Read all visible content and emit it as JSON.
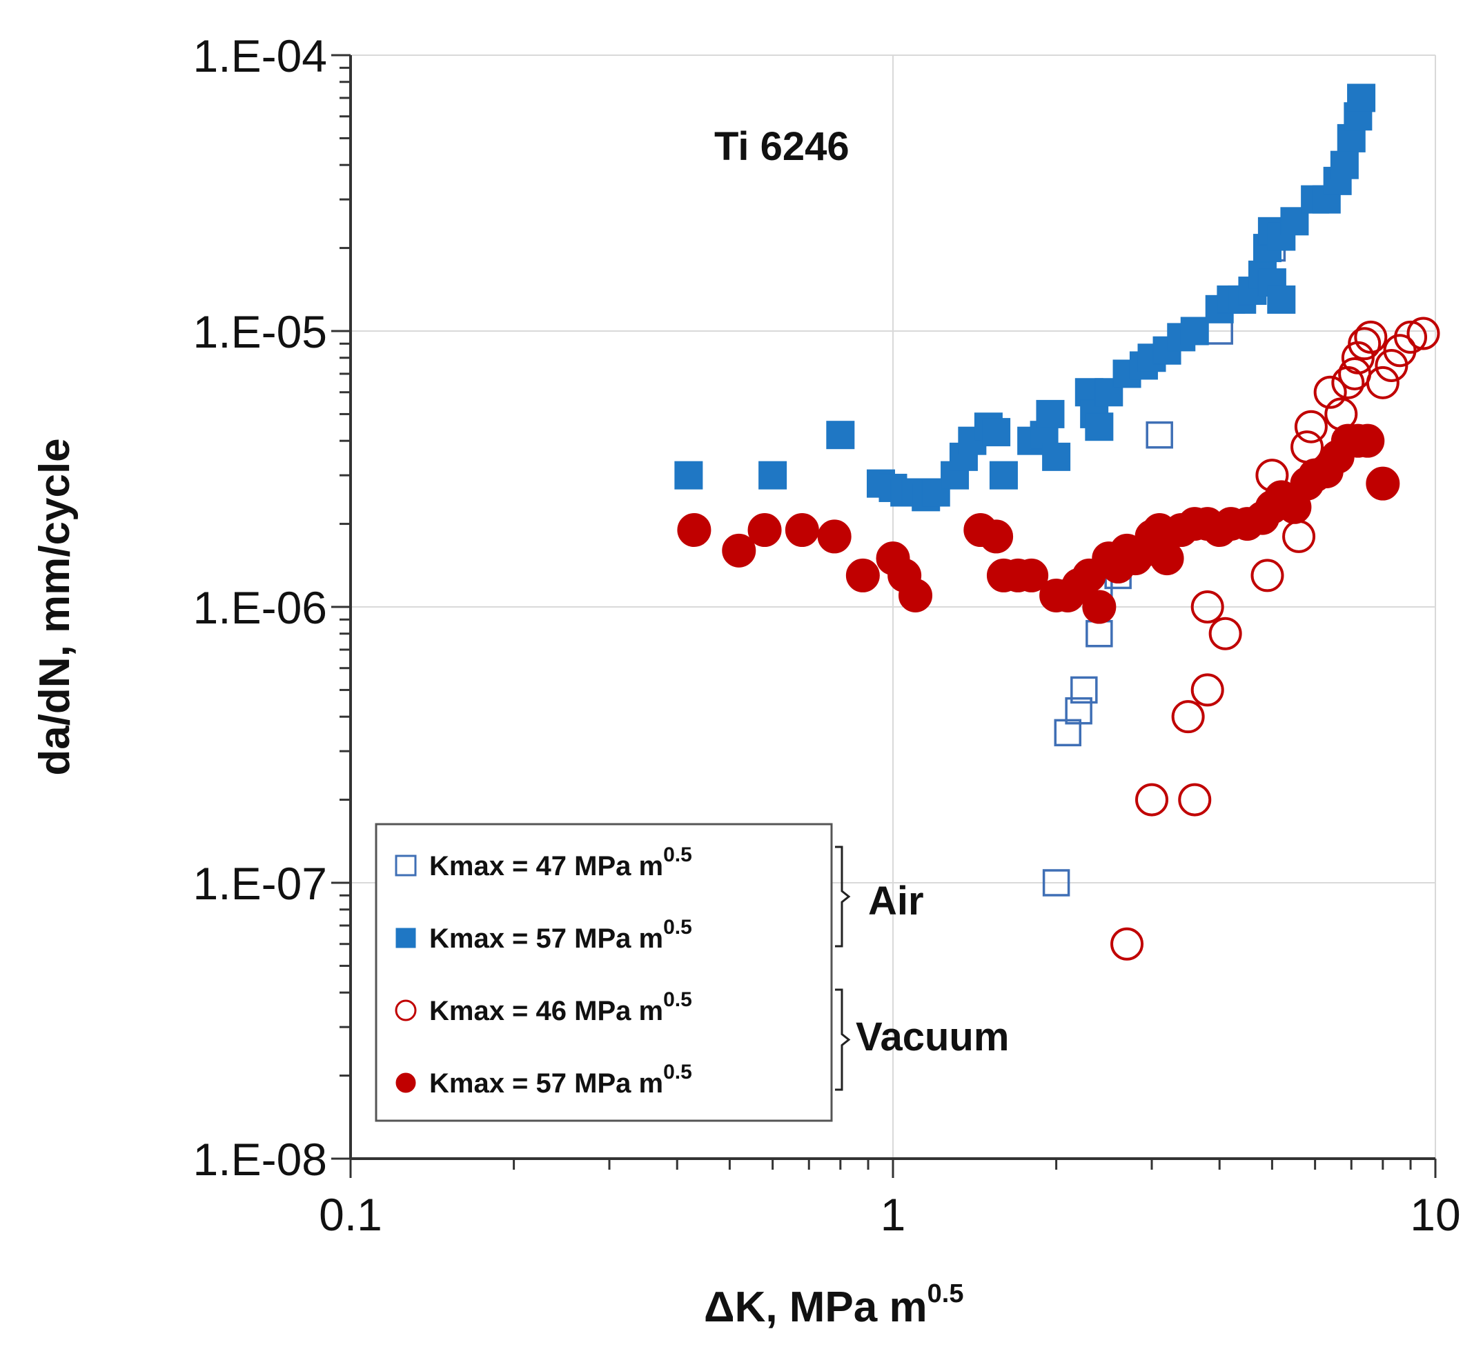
{
  "chart_data": {
    "type": "scatter",
    "title": "",
    "annotation": "Ti 6246",
    "xlabel": {
      "main": "ΔK, MPa m",
      "sup": "0.5"
    },
    "ylabel": "da/dN, mm/cycle",
    "xscale": "log",
    "yscale": "log",
    "xlim": [
      0.1,
      10
    ],
    "ylim": [
      1e-08,
      0.0001
    ],
    "x_ticks": [
      {
        "value": 0.1,
        "label": "0.1"
      },
      {
        "value": 1,
        "label": "1"
      },
      {
        "value": 10,
        "label": "10"
      }
    ],
    "y_ticks": [
      {
        "value": 1e-08,
        "label": "1.E-08"
      },
      {
        "value": 1e-07,
        "label": "1.E-07"
      },
      {
        "value": 1e-06,
        "label": "1.E-06"
      },
      {
        "value": 1e-05,
        "label": "1.E-05"
      },
      {
        "value": 0.0001,
        "label": "1.E-04"
      }
    ],
    "grid": true,
    "legend_position": "bottom-left",
    "groups": [
      {
        "label": "Air",
        "series": [
          0,
          1
        ]
      },
      {
        "label": "Vacuum",
        "series": [
          2,
          3
        ]
      }
    ],
    "series": [
      {
        "name": "Kmax = 47 MPa m",
        "sup": "0.5",
        "marker": "square",
        "filled": false,
        "color": "#3f6fb5",
        "points": [
          [
            2.0,
            1e-07
          ],
          [
            2.1,
            3.5e-07
          ],
          [
            2.2,
            4.2e-07
          ],
          [
            2.25,
            5e-07
          ],
          [
            2.4,
            8e-07
          ],
          [
            2.4,
            1.2e-06
          ],
          [
            2.6,
            1.3e-06
          ],
          [
            3.1,
            4.2e-06
          ],
          [
            4.0,
            1e-05
          ],
          [
            5.0,
            2e-05
          ]
        ]
      },
      {
        "name": "Kmax = 57 MPa m",
        "sup": "0.5",
        "marker": "square",
        "filled": true,
        "color": "#1f77c4",
        "points": [
          [
            0.42,
            3e-06
          ],
          [
            0.6,
            3e-06
          ],
          [
            0.8,
            4.2e-06
          ],
          [
            0.95,
            2.8e-06
          ],
          [
            1.0,
            2.7e-06
          ],
          [
            1.05,
            2.6e-06
          ],
          [
            1.1,
            2.6e-06
          ],
          [
            1.15,
            2.5e-06
          ],
          [
            1.2,
            2.6e-06
          ],
          [
            1.3,
            3e-06
          ],
          [
            1.35,
            3.5e-06
          ],
          [
            1.4,
            4e-06
          ],
          [
            1.5,
            4.5e-06
          ],
          [
            1.55,
            4.3e-06
          ],
          [
            1.6,
            3e-06
          ],
          [
            1.8,
            4e-06
          ],
          [
            1.9,
            4.2e-06
          ],
          [
            1.95,
            5e-06
          ],
          [
            2.0,
            3.5e-06
          ],
          [
            2.3,
            6e-06
          ],
          [
            2.35,
            5e-06
          ],
          [
            2.4,
            4.5e-06
          ],
          [
            2.5,
            6e-06
          ],
          [
            2.7,
            7e-06
          ],
          [
            2.9,
            7.5e-06
          ],
          [
            3.0,
            8e-06
          ],
          [
            3.2,
            8.5e-06
          ],
          [
            3.4,
            9.5e-06
          ],
          [
            3.6,
            1e-05
          ],
          [
            4.0,
            1.2e-05
          ],
          [
            4.2,
            1.3e-05
          ],
          [
            4.4,
            1.3e-05
          ],
          [
            4.6,
            1.4e-05
          ],
          [
            4.8,
            1.6e-05
          ],
          [
            5.0,
            1.5e-05
          ],
          [
            5.2,
            1.3e-05
          ],
          [
            4.9,
            2e-05
          ],
          [
            5.0,
            2.3e-05
          ],
          [
            5.2,
            2.2e-05
          ],
          [
            5.5,
            2.5e-05
          ],
          [
            6.0,
            3e-05
          ],
          [
            6.3,
            3e-05
          ],
          [
            6.6,
            3.5e-05
          ],
          [
            6.8,
            4e-05
          ],
          [
            7.0,
            5e-05
          ],
          [
            7.2,
            6e-05
          ],
          [
            7.3,
            7e-05
          ]
        ]
      },
      {
        "name": "Kmax = 46 MPa m",
        "sup": "0.5",
        "marker": "circle",
        "filled": false,
        "color": "#c00000",
        "points": [
          [
            2.7,
            6e-08
          ],
          [
            3.0,
            2e-07
          ],
          [
            3.6,
            2e-07
          ],
          [
            3.5,
            4e-07
          ],
          [
            3.8,
            5e-07
          ],
          [
            3.8,
            1e-06
          ],
          [
            4.1,
            8e-07
          ],
          [
            4.9,
            1.3e-06
          ],
          [
            5.6,
            1.8e-06
          ],
          [
            5.0,
            3e-06
          ],
          [
            5.8,
            3.8e-06
          ],
          [
            5.9,
            4.5e-06
          ],
          [
            6.4,
            6e-06
          ],
          [
            6.7,
            5e-06
          ],
          [
            6.9,
            6.5e-06
          ],
          [
            7.1,
            7e-06
          ],
          [
            7.2,
            8e-06
          ],
          [
            7.4,
            9e-06
          ],
          [
            7.6,
            9.5e-06
          ],
          [
            8.0,
            6.5e-06
          ],
          [
            8.3,
            7.5e-06
          ],
          [
            8.6,
            8.5e-06
          ],
          [
            9.0,
            9.5e-06
          ],
          [
            9.5,
            9.8e-06
          ]
        ]
      },
      {
        "name": "Kmax = 57 MPa m",
        "sup": "0.5",
        "marker": "circle",
        "filled": true,
        "color": "#c00000",
        "points": [
          [
            0.43,
            1.9e-06
          ],
          [
            0.52,
            1.6e-06
          ],
          [
            0.58,
            1.9e-06
          ],
          [
            0.68,
            1.9e-06
          ],
          [
            0.78,
            1.8e-06
          ],
          [
            0.88,
            1.3e-06
          ],
          [
            1.0,
            1.5e-06
          ],
          [
            1.05,
            1.3e-06
          ],
          [
            1.1,
            1.1e-06
          ],
          [
            1.45,
            1.9e-06
          ],
          [
            1.55,
            1.8e-06
          ],
          [
            1.6,
            1.3e-06
          ],
          [
            1.7,
            1.3e-06
          ],
          [
            1.8,
            1.3e-06
          ],
          [
            2.0,
            1.1e-06
          ],
          [
            2.1,
            1.1e-06
          ],
          [
            2.2,
            1.2e-06
          ],
          [
            2.3,
            1.3e-06
          ],
          [
            2.4,
            1e-06
          ],
          [
            2.5,
            1.5e-06
          ],
          [
            2.6,
            1.4e-06
          ],
          [
            2.7,
            1.6e-06
          ],
          [
            2.8,
            1.5e-06
          ],
          [
            2.9,
            1.6e-06
          ],
          [
            3.0,
            1.8e-06
          ],
          [
            3.1,
            1.9e-06
          ],
          [
            3.2,
            1.5e-06
          ],
          [
            3.4,
            1.9e-06
          ],
          [
            3.6,
            2e-06
          ],
          [
            3.8,
            2e-06
          ],
          [
            4.0,
            1.9e-06
          ],
          [
            4.2,
            2e-06
          ],
          [
            4.5,
            2e-06
          ],
          [
            4.8,
            2.1e-06
          ],
          [
            5.0,
            2.3e-06
          ],
          [
            5.2,
            2.5e-06
          ],
          [
            5.5,
            2.3e-06
          ],
          [
            5.8,
            2.8e-06
          ],
          [
            6.0,
            3e-06
          ],
          [
            6.3,
            3.1e-06
          ],
          [
            6.6,
            3.5e-06
          ],
          [
            6.9,
            4e-06
          ],
          [
            7.2,
            4e-06
          ],
          [
            7.5,
            4e-06
          ],
          [
            8.0,
            2.8e-06
          ]
        ]
      }
    ]
  }
}
